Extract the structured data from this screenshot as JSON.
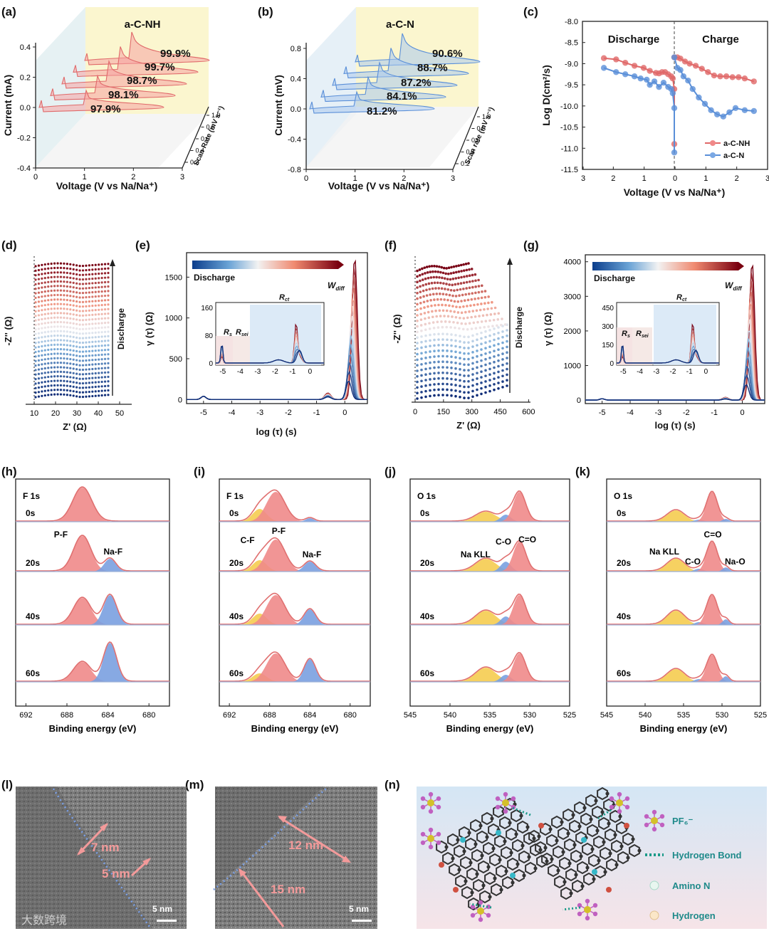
{
  "panel_labels": {
    "a": "(a)",
    "b": "(b)",
    "c": "(c)",
    "d": "(d)",
    "e": "(e)",
    "f": "(f)",
    "g": "(g)",
    "h": "(h)",
    "i": "(i)",
    "j": "(j)",
    "k": "(k)",
    "l": "(l)",
    "m": "(m)",
    "n": "(n)"
  },
  "chart_data": [
    {
      "id": "a",
      "type": "line",
      "title": "a-C-NH",
      "xlabel": "Voltage (V vs Na/Na⁺)",
      "ylabel": "Current (mA)",
      "zlabel": "Scan Rate (mV s⁻¹)",
      "xticks": [
        "0",
        "1",
        "2",
        "3"
      ],
      "yticks": [
        "-0.4",
        "-0.2",
        "0.0",
        "0.2",
        "0.4"
      ],
      "zticks": [
        "0.2",
        "0.4",
        "0.6",
        "0.8",
        "1.0"
      ],
      "ylim": [
        -0.4,
        0.4
      ],
      "xlim": [
        0,
        3
      ],
      "annotations": [
        "99.9%",
        "99.7%",
        "98.7%",
        "98.1%",
        "97.9%"
      ],
      "color": "#f08080"
    },
    {
      "id": "b",
      "type": "line",
      "title": "a-C-N",
      "xlabel": "Voltage (V vs Na/Na⁺)",
      "ylabel": "Current (mV)",
      "zlabel": "Scan rate (mV s⁻¹)",
      "xticks": [
        "0",
        "1",
        "2",
        "3"
      ],
      "yticks": [
        "-0.8",
        "-0.4",
        "0.0",
        "0.4",
        "0.8"
      ],
      "zticks": [
        "0.2",
        "0.4",
        "0.6",
        "0.8",
        "1.0"
      ],
      "ylim": [
        -0.8,
        0.8
      ],
      "xlim": [
        0,
        3
      ],
      "annotations": [
        "90.6%",
        "88.7%",
        "87.2%",
        "84.1%",
        "81.2%"
      ],
      "color": "#7aaee0"
    },
    {
      "id": "c",
      "type": "line",
      "xlabel": "Voltage (V vs Na/Na⁺)",
      "ylabel": "Log D(cm²/s)",
      "xticks": [
        "3",
        "2",
        "1",
        "0",
        "1",
        "2",
        "3"
      ],
      "yticks": [
        "-8.0",
        "-8.5",
        "-9.0",
        "-9.5",
        "-10.0",
        "-10.5",
        "-11.0",
        "-11.5"
      ],
      "ylim": [
        -11.5,
        -8.0
      ],
      "text_labels": {
        "discharge": "Discharge",
        "charge": "Charge"
      },
      "series": [
        {
          "name": "a-C-NH",
          "color": "#e06868",
          "discharge": [
            [
              2.3,
              -8.87
            ],
            [
              1.9,
              -8.9
            ],
            [
              1.6,
              -8.98
            ],
            [
              1.3,
              -9.05
            ],
            [
              1.0,
              -9.1
            ],
            [
              0.8,
              -9.17
            ],
            [
              0.6,
              -9.22
            ],
            [
              0.5,
              -9.23
            ],
            [
              0.4,
              -9.2
            ],
            [
              0.3,
              -9.2
            ],
            [
              0.2,
              -9.25
            ],
            [
              0.1,
              -9.3
            ],
            [
              0.05,
              -9.35
            ],
            [
              0.0,
              -9.6
            ],
            [
              0.0,
              -10.9
            ]
          ],
          "charge": [
            [
              0.0,
              -8.85
            ],
            [
              0.1,
              -8.85
            ],
            [
              0.2,
              -8.88
            ],
            [
              0.35,
              -8.95
            ],
            [
              0.5,
              -9.0
            ],
            [
              0.7,
              -9.05
            ],
            [
              0.9,
              -9.12
            ],
            [
              1.1,
              -9.2
            ],
            [
              1.3,
              -9.28
            ],
            [
              1.5,
              -9.3
            ],
            [
              1.7,
              -9.3
            ],
            [
              1.9,
              -9.32
            ],
            [
              2.1,
              -9.32
            ],
            [
              2.3,
              -9.35
            ],
            [
              2.6,
              -9.42
            ]
          ]
        },
        {
          "name": "a-C-N",
          "color": "#5a8fd8",
          "discharge": [
            [
              2.3,
              -9.1
            ],
            [
              1.9,
              -9.2
            ],
            [
              1.6,
              -9.25
            ],
            [
              1.3,
              -9.3
            ],
            [
              1.1,
              -9.35
            ],
            [
              0.9,
              -9.38
            ],
            [
              0.8,
              -9.5
            ],
            [
              0.65,
              -9.42
            ],
            [
              0.5,
              -9.55
            ],
            [
              0.35,
              -9.45
            ],
            [
              0.2,
              -9.55
            ],
            [
              0.1,
              -9.6
            ],
            [
              0.05,
              -9.7
            ],
            [
              0.0,
              -10.05
            ],
            [
              0.0,
              -11.1
            ]
          ],
          "charge": [
            [
              0.0,
              -8.85
            ],
            [
              0.1,
              -9.1
            ],
            [
              0.2,
              -9.15
            ],
            [
              0.3,
              -9.3
            ],
            [
              0.45,
              -9.4
            ],
            [
              0.6,
              -9.6
            ],
            [
              0.8,
              -9.8
            ],
            [
              1.0,
              -9.95
            ],
            [
              1.2,
              -10.1
            ],
            [
              1.4,
              -10.2
            ],
            [
              1.6,
              -10.25
            ],
            [
              1.8,
              -10.15
            ],
            [
              2.0,
              -10.05
            ],
            [
              2.3,
              -10.1
            ],
            [
              2.6,
              -10.12
            ]
          ]
        }
      ],
      "legend": "bottom-right"
    },
    {
      "id": "d",
      "type": "scatter",
      "xlabel": "Z' (Ω)",
      "ylabel": "-Z'' (Ω)",
      "xticks": [
        "10",
        "20",
        "30",
        "40",
        "50"
      ],
      "xlim": [
        10,
        55
      ],
      "arrow_label": "Discharge"
    },
    {
      "id": "e",
      "type": "line",
      "xlabel": "log (τ) (s)",
      "ylabel": "γ (τ) (Ω)",
      "xticks": [
        "-5",
        "-4",
        "-3",
        "-2",
        "-1",
        "0"
      ],
      "yticks": [
        "0",
        "500",
        "1000",
        "1500"
      ],
      "xlim": [
        -5.6,
        0.8
      ],
      "ylim": [
        -50,
        1800
      ],
      "colorbar_label": "Discharge",
      "peak_label": "W_diff",
      "inset": {
        "yticks": [
          "0",
          "80",
          "160"
        ],
        "xticks": [
          "-5",
          "-4",
          "-3",
          "-2",
          "-1",
          "0"
        ],
        "labels": [
          "R_s",
          "R_sei",
          "R_ct"
        ]
      }
    },
    {
      "id": "f",
      "type": "scatter",
      "xlabel": "Z' (Ω)",
      "ylabel": "-Z'' (Ω)",
      "xticks": [
        "0",
        "150",
        "300",
        "450",
        "600"
      ],
      "xlim": [
        0,
        640
      ],
      "arrow_label": "Discharge"
    },
    {
      "id": "g",
      "type": "line",
      "xlabel": "log (τ) (s)",
      "ylabel": "γ (τ) (Ω)",
      "xticks": [
        "-5",
        "-4",
        "-3",
        "-2",
        "-1",
        "0"
      ],
      "yticks": [
        "0",
        "1000",
        "2000",
        "3000",
        "4000"
      ],
      "xlim": [
        -5.6,
        0.8
      ],
      "ylim": [
        -100,
        4200
      ],
      "colorbar_label": "Discharge",
      "peak_label": "W_diff",
      "inset": {
        "yticks": [
          "0",
          "150",
          "300",
          "450"
        ],
        "xticks": [
          "-5",
          "-4",
          "-3",
          "-2",
          "-1",
          "0"
        ],
        "labels": [
          "R_s",
          "R_sei",
          "R_ct"
        ]
      }
    },
    {
      "id": "h",
      "type": "area",
      "title": "F 1s",
      "xlabel": "Binding energy (eV)",
      "xticks": [
        "692",
        "688",
        "684",
        "680"
      ],
      "xlim": [
        693,
        678
      ],
      "times": [
        "0s",
        "20s",
        "40s",
        "60s"
      ],
      "peak_labels": [
        "P-F",
        "Na-F"
      ]
    },
    {
      "id": "i",
      "type": "area",
      "title": "F 1s",
      "xlabel": "Binding energy (eV)",
      "xticks": [
        "692",
        "688",
        "684",
        "680"
      ],
      "xlim": [
        693,
        678
      ],
      "times": [
        "0s",
        "20s",
        "40s",
        "60s"
      ],
      "peak_labels": [
        "C-F",
        "P-F",
        "Na-F"
      ]
    },
    {
      "id": "j",
      "type": "area",
      "title": "O 1s",
      "xlabel": "Binding energy (eV)",
      "xticks": [
        "545",
        "540",
        "535",
        "530",
        "525"
      ],
      "xlim": [
        545,
        525
      ],
      "times": [
        "0s",
        "20s",
        "40s",
        "60s"
      ],
      "peak_labels": [
        "Na KLL",
        "C-O",
        "C=O"
      ]
    },
    {
      "id": "k",
      "type": "area",
      "title": "O 1s",
      "xlabel": "Binding energy (eV)",
      "xticks": [
        "545",
        "540",
        "535",
        "530",
        "525"
      ],
      "xlim": [
        545,
        525
      ],
      "times": [
        "0s",
        "20s",
        "40s",
        "60s"
      ],
      "peak_labels": [
        "Na KLL",
        "C-O",
        "C=O",
        "Na-O"
      ]
    }
  ],
  "tem": {
    "l": {
      "labels": [
        "7 nm",
        "5 nm"
      ],
      "scale": "5 nm"
    },
    "m": {
      "labels": [
        "12 nm",
        "15 nm"
      ],
      "scale": "5 nm"
    }
  },
  "schematic": {
    "legend": [
      "PF₆⁻",
      "Hydrogen Bond",
      "Amino N",
      "Hydrogen"
    ]
  },
  "watermark": "大数跨境"
}
